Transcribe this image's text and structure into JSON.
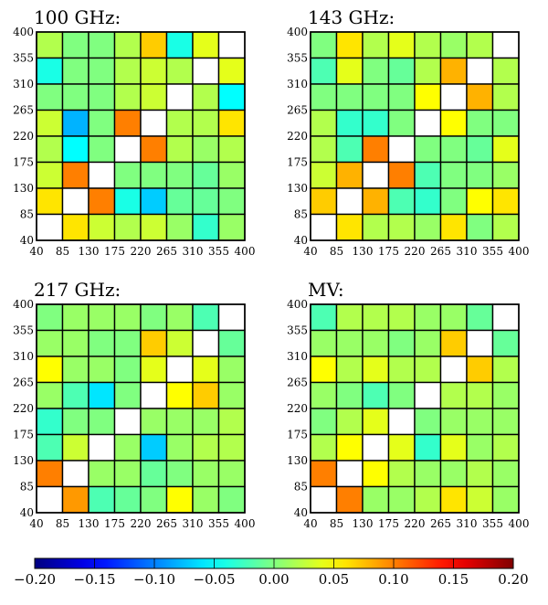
{
  "chart_data": {
    "type": "heatmap",
    "bins": [
      "40",
      "85",
      "130",
      "175",
      "220",
      "265",
      "310",
      "355",
      "400"
    ],
    "axis_ticks": [
      "40",
      "85",
      "130",
      "175",
      "220",
      "265",
      "310",
      "355",
      "400"
    ],
    "colorbar": {
      "min": -0.2,
      "max": 0.2,
      "ticks": [
        "−0.20",
        "−0.15",
        "−0.10",
        "−0.05",
        "0.00",
        "0.05",
        "0.10",
        "0.15",
        "0.20"
      ],
      "colormap": "jet"
    },
    "panels": [
      {
        "title": "100 GHz:",
        "rows_top_to_bottom": [
          [
            0.02,
            0.0,
            0.0,
            0.02,
            0.07,
            -0.04,
            0.04,
            null
          ],
          [
            -0.04,
            0.0,
            0.0,
            0.02,
            0.03,
            0.02,
            null,
            0.04
          ],
          [
            0.0,
            0.0,
            0.0,
            0.02,
            0.03,
            null,
            0.02,
            -0.05
          ],
          [
            0.03,
            -0.08,
            0.0,
            0.1,
            null,
            0.02,
            0.02,
            0.06
          ],
          [
            0.02,
            -0.05,
            0.0,
            null,
            0.1,
            0.02,
            0.01,
            0.02
          ],
          [
            0.03,
            0.1,
            null,
            0.0,
            0.0,
            0.0,
            -0.01,
            0.01
          ],
          [
            0.06,
            null,
            0.1,
            -0.04,
            -0.07,
            -0.01,
            -0.01,
            0.0
          ],
          [
            null,
            0.06,
            0.03,
            0.02,
            0.03,
            0.01,
            -0.03,
            0.01
          ]
        ]
      },
      {
        "title": "143 GHz:",
        "rows_top_to_bottom": [
          [
            0.0,
            0.06,
            0.02,
            0.04,
            0.02,
            0.01,
            0.02,
            null
          ],
          [
            -0.02,
            0.04,
            0.0,
            -0.01,
            0.02,
            0.08,
            null,
            0.02
          ],
          [
            0.0,
            0.0,
            0.0,
            0.0,
            0.05,
            null,
            0.08,
            0.02
          ],
          [
            0.02,
            -0.03,
            -0.03,
            0.0,
            null,
            0.05,
            0.0,
            0.0
          ],
          [
            0.02,
            -0.02,
            0.1,
            null,
            0.0,
            0.0,
            -0.01,
            0.04
          ],
          [
            0.03,
            0.08,
            null,
            0.1,
            -0.02,
            0.0,
            0.0,
            0.01
          ],
          [
            0.07,
            null,
            0.08,
            -0.02,
            -0.03,
            0.0,
            0.05,
            0.06
          ],
          [
            null,
            0.06,
            0.02,
            0.02,
            0.01,
            0.06,
            0.0,
            0.02
          ]
        ]
      },
      {
        "title": "217 GHz:",
        "rows_top_to_bottom": [
          [
            0.0,
            0.01,
            0.01,
            0.01,
            0.0,
            0.01,
            -0.02,
            null
          ],
          [
            0.01,
            0.01,
            0.0,
            0.0,
            0.07,
            0.03,
            null,
            -0.01
          ],
          [
            0.05,
            0.01,
            0.01,
            0.0,
            0.04,
            null,
            0.04,
            0.01
          ],
          [
            0.01,
            -0.02,
            -0.06,
            0.0,
            null,
            0.05,
            0.07,
            0.01
          ],
          [
            -0.03,
            0.0,
            0.0,
            null,
            0.01,
            0.01,
            0.01,
            0.02
          ],
          [
            -0.02,
            0.03,
            null,
            0.01,
            -0.07,
            0.01,
            0.02,
            0.02
          ],
          [
            0.1,
            null,
            0.01,
            0.01,
            -0.01,
            0.0,
            0.01,
            0.01
          ],
          [
            null,
            0.09,
            -0.02,
            -0.01,
            0.0,
            0.05,
            0.01,
            0.0
          ]
        ]
      },
      {
        "title": "MV:",
        "rows_top_to_bottom": [
          [
            -0.02,
            0.02,
            0.02,
            0.02,
            0.01,
            0.01,
            -0.01,
            null
          ],
          [
            0.01,
            0.01,
            0.01,
            0.0,
            0.01,
            0.07,
            null,
            -0.01
          ],
          [
            0.05,
            0.02,
            0.04,
            0.02,
            0.02,
            null,
            0.07,
            0.02
          ],
          [
            0.01,
            0.0,
            -0.02,
            0.0,
            null,
            0.02,
            0.02,
            0.01
          ],
          [
            0.0,
            0.02,
            0.04,
            null,
            0.0,
            0.01,
            0.01,
            0.01
          ],
          [
            0.02,
            0.05,
            null,
            0.04,
            -0.03,
            0.04,
            0.01,
            0.02
          ],
          [
            0.1,
            null,
            0.05,
            0.02,
            0.01,
            0.01,
            0.02,
            0.01
          ],
          [
            null,
            0.1,
            0.01,
            0.01,
            0.02,
            0.06,
            0.03,
            0.01
          ]
        ]
      }
    ]
  }
}
